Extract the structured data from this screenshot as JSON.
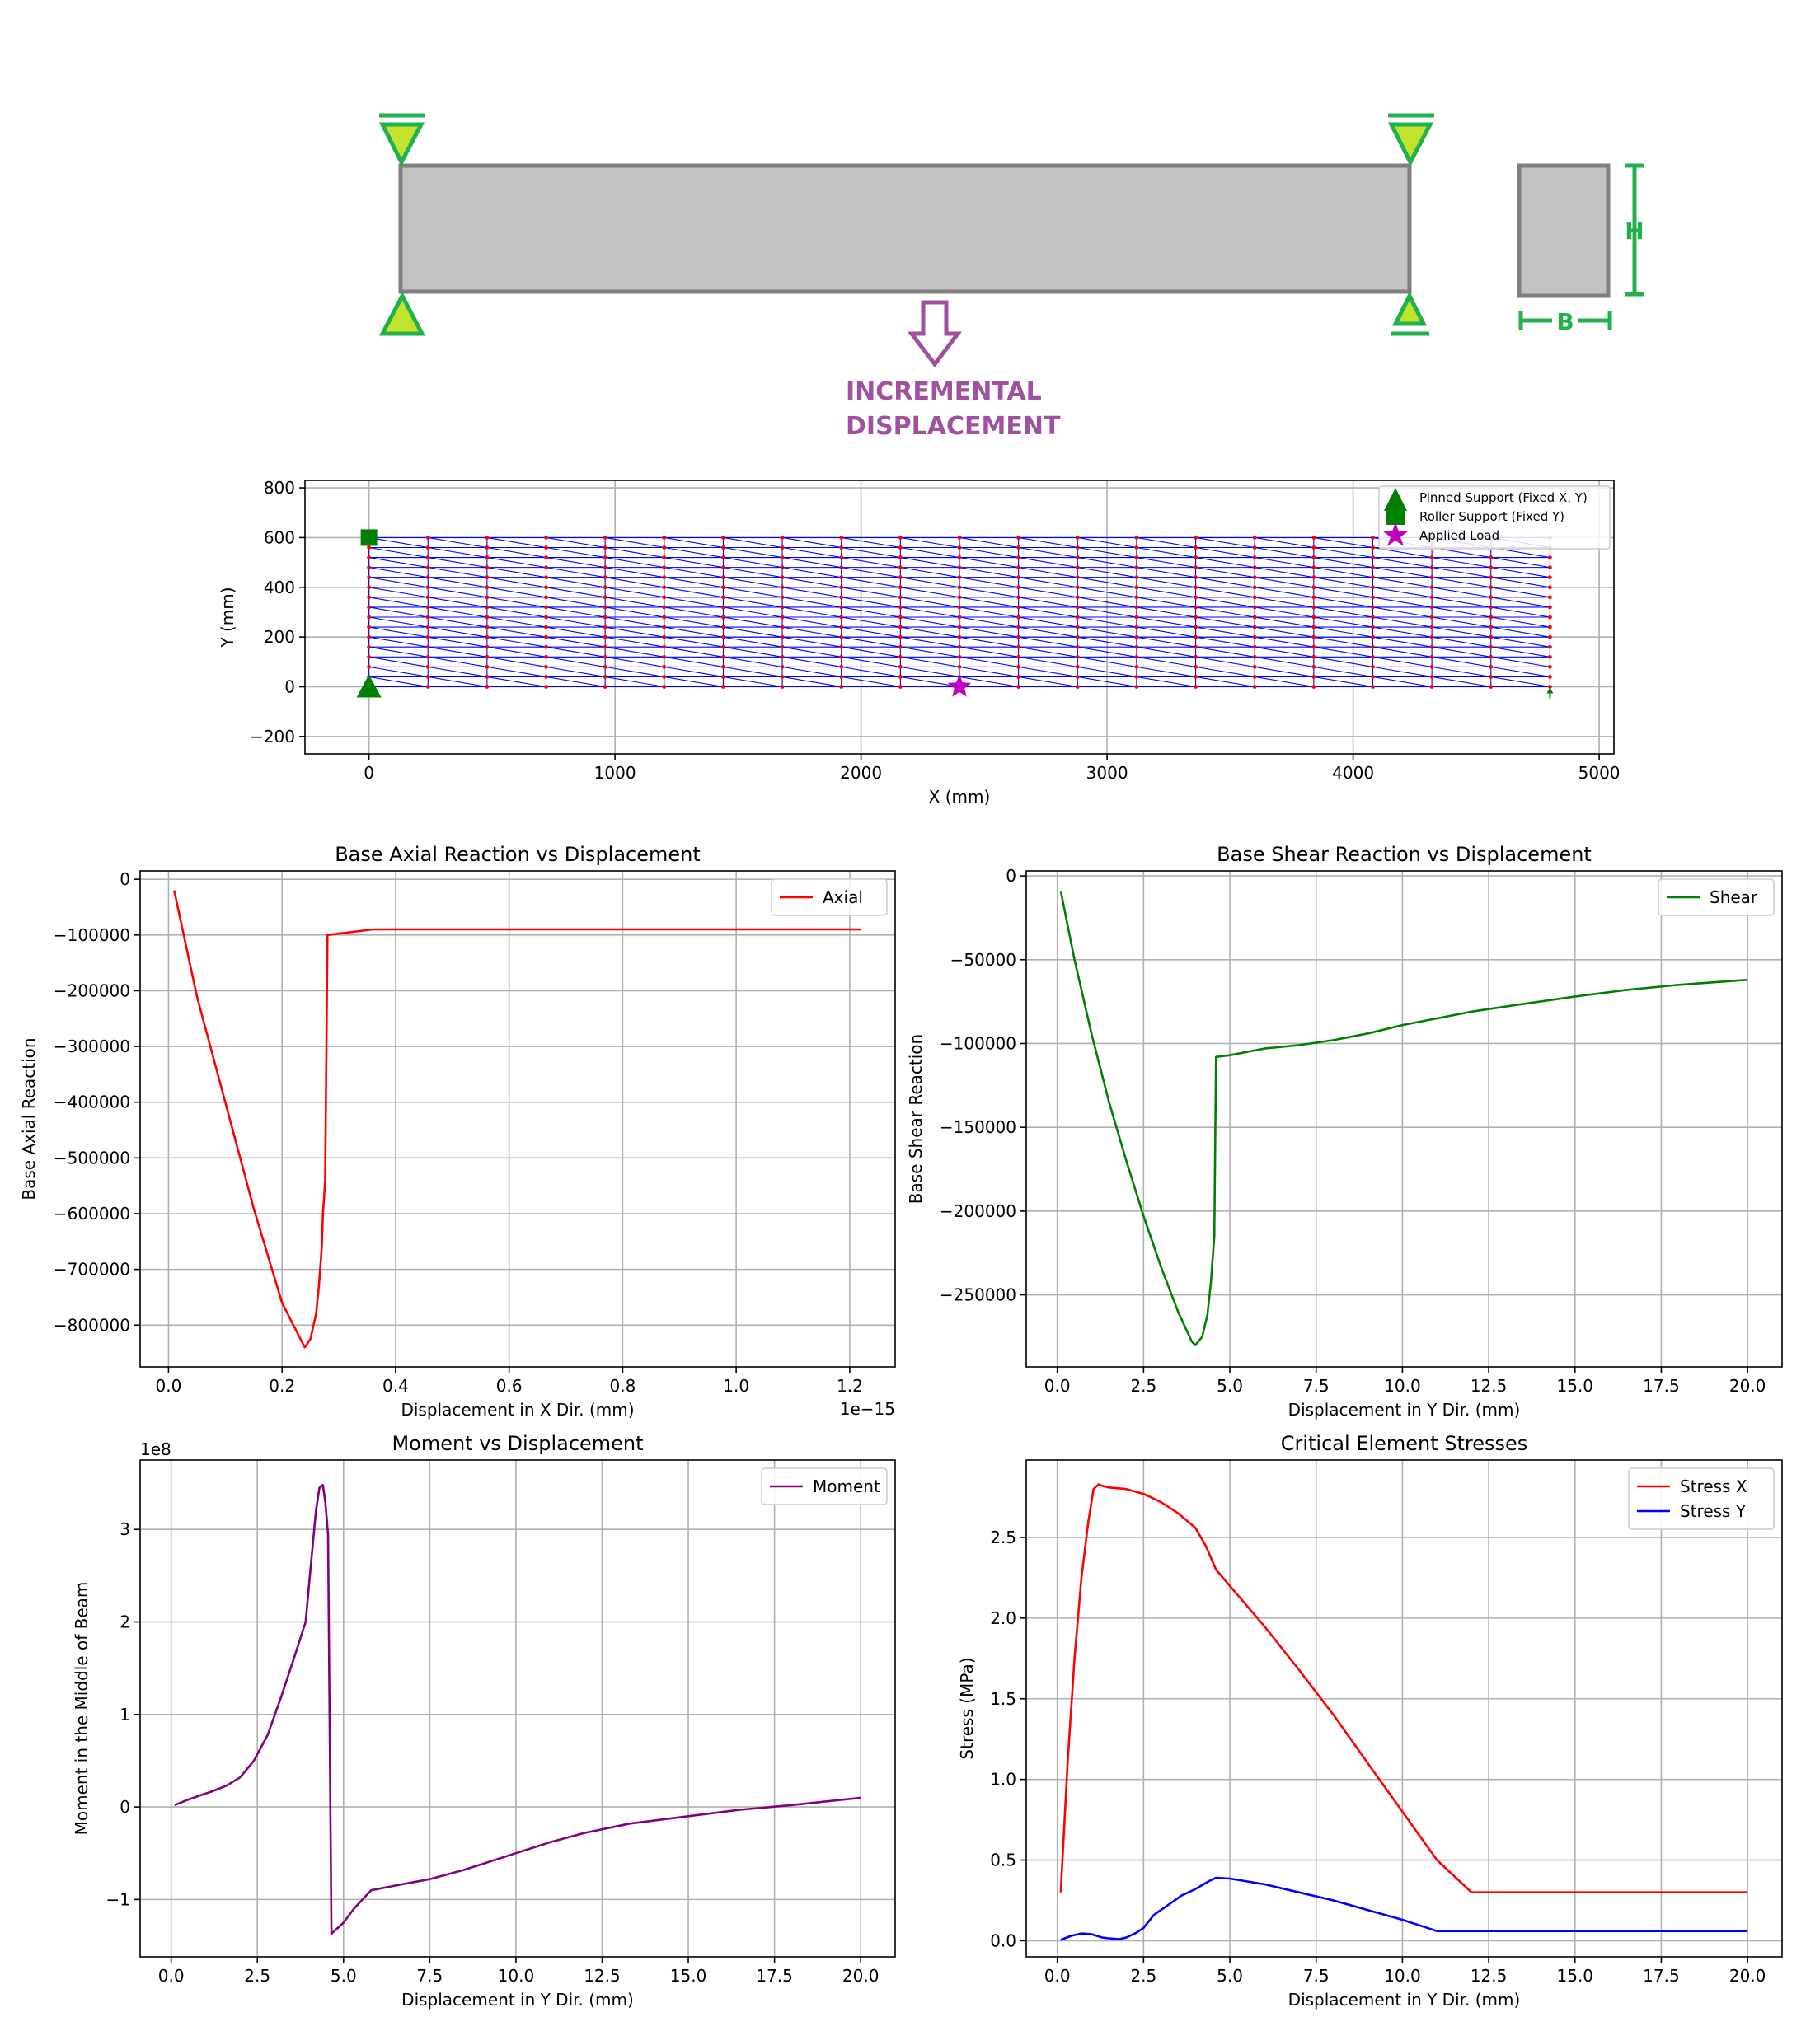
{
  "schematic": {
    "load_label_line1": "INCREMENTAL",
    "load_label_line2": "DISPLACEMENT",
    "height_label": "H",
    "width_label": "B",
    "colors": {
      "beam_fill": "#c2c2c2",
      "beam_edge": "#7f7f7f",
      "support": "#21b04b",
      "support_fill": "#c2e32c",
      "load": "#a0509e"
    }
  },
  "chart_data": [
    {
      "id": "mesh",
      "type": "scatter",
      "title": "",
      "xlabel": "X (mm)",
      "ylabel": "Y (mm)",
      "xlim": [
        -260,
        5060
      ],
      "ylim": [
        -270,
        830
      ],
      "xticks": [
        0,
        1000,
        2000,
        3000,
        4000,
        5000
      ],
      "yticks": [
        -200,
        0,
        200,
        400,
        600,
        800
      ],
      "grid": true,
      "mesh": {
        "x_start": 0,
        "x_end": 4800,
        "x_divisions": 20,
        "y_start": 0,
        "y_end": 600,
        "y_divisions": 15
      },
      "markers": [
        {
          "name": "Pinned Support (Fixed X, Y)",
          "symbol": "triangle",
          "color": "#007f00",
          "x": 0,
          "y": 0
        },
        {
          "name": "Roller Support (Fixed Y)",
          "symbol": "square",
          "color": "#007f00",
          "x": 0,
          "y": 600
        },
        {
          "name": "Applied Load",
          "symbol": "star",
          "color": "#bf00bf",
          "x": 2400,
          "y": 0
        }
      ],
      "legend": {
        "position": "top-right",
        "entries": [
          "Pinned Support (Fixed X, Y)",
          "Roller Support (Fixed Y)",
          "Applied Load"
        ]
      },
      "colors": {
        "element": "#0000ff",
        "node": "#ff0000"
      }
    },
    {
      "id": "axial",
      "type": "line",
      "title": "Base Axial Reaction vs Displacement",
      "xlabel": "Displacement in X Dir. (mm)",
      "ylabel": "Base Axial Reaction",
      "x_offset_text": "1e−15",
      "xlim": [
        -0.05,
        1.28
      ],
      "ylim": [
        -875000,
        15000
      ],
      "xticks": [
        0.0,
        0.2,
        0.4,
        0.6,
        0.8,
        1.0,
        1.2
      ],
      "xtick_labels": [
        "0.0",
        "0.2",
        "0.4",
        "0.6",
        "0.8",
        "1.0",
        "1.2"
      ],
      "yticks": [
        0,
        -100000,
        -200000,
        -300000,
        -400000,
        -500000,
        -600000,
        -700000,
        -800000
      ],
      "ytick_labels": [
        "0",
        "−100000",
        "−200000",
        "−300000",
        "−400000",
        "−500000",
        "−600000",
        "−700000",
        "−800000"
      ],
      "grid": true,
      "legend": {
        "position": "top-right"
      },
      "series": [
        {
          "name": "Axial",
          "color": "#ff0000",
          "x": [
            0.01,
            0.05,
            0.1,
            0.15,
            0.2,
            0.24,
            0.25,
            0.26,
            0.265,
            0.27,
            0.272,
            0.276,
            0.28,
            0.36,
            1.22
          ],
          "y": [
            -20000,
            -210000,
            -400000,
            -590000,
            -760000,
            -840000,
            -825000,
            -780000,
            -730000,
            -660000,
            -600000,
            -540000,
            -100000,
            -90000,
            -90000
          ]
        }
      ]
    },
    {
      "id": "shear",
      "type": "line",
      "title": "Base Shear Reaction vs Displacement",
      "xlabel": "Displacement in Y Dir. (mm)",
      "ylabel": "Base Shear Reaction",
      "xlim": [
        -0.9,
        21.0
      ],
      "ylim": [
        -293000,
        3000
      ],
      "xticks": [
        0,
        2.5,
        5,
        7.5,
        10,
        12.5,
        15,
        17.5,
        20
      ],
      "xtick_labels": [
        "0.0",
        "2.5",
        "5.0",
        "7.5",
        "10.0",
        "12.5",
        "15.0",
        "17.5",
        "20.0"
      ],
      "yticks": [
        0,
        -50000,
        -100000,
        -150000,
        -200000,
        -250000
      ],
      "ytick_labels": [
        "0",
        "−50000",
        "−100000",
        "−150000",
        "−200000",
        "−250000"
      ],
      "grid": true,
      "legend": {
        "position": "top-right"
      },
      "series": [
        {
          "name": "Shear",
          "color": "#007f00",
          "x": [
            0.1,
            0.5,
            1.0,
            1.5,
            2.0,
            2.5,
            3.0,
            3.5,
            3.9,
            4.0,
            4.2,
            4.35,
            4.45,
            4.55,
            4.6,
            5.0,
            6.0,
            7.0,
            8.0,
            9.0,
            10.0,
            11.0,
            12.0,
            13.3,
            15.0,
            16.5,
            18.0,
            20.0
          ],
          "y": [
            -9000,
            -50000,
            -95000,
            -135000,
            -170000,
            -203000,
            -233000,
            -260000,
            -278000,
            -280000,
            -275000,
            -262000,
            -243000,
            -215000,
            -108000,
            -107000,
            -103000,
            -101000,
            -98000,
            -94000,
            -89000,
            -85000,
            -81000,
            -77000,
            -72000,
            -68000,
            -65000,
            -62000
          ]
        }
      ]
    },
    {
      "id": "moment",
      "type": "line",
      "title": "Moment vs Displacement",
      "xlabel": "Displacement in Y Dir. (mm)",
      "ylabel": "Moment in the Middle of Beam",
      "y_offset_text": "1e8",
      "xlim": [
        -0.9,
        21.0
      ],
      "ylim": [
        -1.62,
        3.75
      ],
      "xticks": [
        0,
        2.5,
        5,
        7.5,
        10,
        12.5,
        15,
        17.5,
        20
      ],
      "xtick_labels": [
        "0.0",
        "2.5",
        "5.0",
        "7.5",
        "10.0",
        "12.5",
        "15.0",
        "17.5",
        "20.0"
      ],
      "yticks": [
        -1,
        0,
        1,
        2,
        3
      ],
      "ytick_labels": [
        "−1",
        "0",
        "1",
        "2",
        "3"
      ],
      "grid": true,
      "legend": {
        "position": "top-right"
      },
      "series": [
        {
          "name": "Moment",
          "color": "#800080",
          "x": [
            0.1,
            0.5,
            0.8,
            1.2,
            1.6,
            2.0,
            2.4,
            2.8,
            3.2,
            3.6,
            3.9,
            4.05,
            4.2,
            4.3,
            4.4,
            4.47,
            4.55,
            4.65,
            5.0,
            5.3,
            5.8,
            6.5,
            7.5,
            8.5,
            10.0,
            11.0,
            12.0,
            13.3,
            15.0,
            16.5,
            18.0,
            20.0
          ],
          "y": [
            0.02,
            0.08,
            0.12,
            0.17,
            0.23,
            0.32,
            0.5,
            0.78,
            1.2,
            1.65,
            2.0,
            2.6,
            3.2,
            3.45,
            3.48,
            3.3,
            2.95,
            -1.37,
            -1.25,
            -1.1,
            -0.9,
            -0.85,
            -0.78,
            -0.68,
            -0.5,
            -0.38,
            -0.28,
            -0.18,
            -0.1,
            -0.03,
            0.02,
            0.1
          ]
        }
      ]
    },
    {
      "id": "stress",
      "type": "line",
      "title": "Critical Element Stresses",
      "xlabel": "Displacement in Y Dir. (mm)",
      "ylabel": "Stress (MPa)",
      "xlim": [
        -0.9,
        21.0
      ],
      "ylim": [
        -0.1,
        2.98
      ],
      "xticks": [
        0,
        2.5,
        5,
        7.5,
        10,
        12.5,
        15,
        17.5,
        20
      ],
      "xtick_labels": [
        "0.0",
        "2.5",
        "5.0",
        "7.5",
        "10.0",
        "12.5",
        "15.0",
        "17.5",
        "20.0"
      ],
      "yticks": [
        0.0,
        0.5,
        1.0,
        1.5,
        2.0,
        2.5
      ],
      "ytick_labels": [
        "0.0",
        "0.5",
        "1.0",
        "1.5",
        "2.0",
        "2.5"
      ],
      "grid": true,
      "legend": {
        "position": "top-right"
      },
      "series": [
        {
          "name": "Stress X",
          "color": "#ff0000",
          "x": [
            0.1,
            0.3,
            0.5,
            0.7,
            0.9,
            1.05,
            1.2,
            1.3,
            1.5,
            2.0,
            2.5,
            3.0,
            3.5,
            4.0,
            4.3,
            4.5,
            4.6,
            5.0,
            6.0,
            7.0,
            8.0,
            9.0,
            10.0,
            11.0,
            12.0,
            15.0,
            20.0
          ],
          "y": [
            0.3,
            1.1,
            1.75,
            2.25,
            2.6,
            2.8,
            2.83,
            2.82,
            2.81,
            2.8,
            2.77,
            2.72,
            2.65,
            2.56,
            2.45,
            2.35,
            2.3,
            2.2,
            1.95,
            1.68,
            1.4,
            1.1,
            0.8,
            0.5,
            0.3,
            0.3,
            0.3
          ]
        },
        {
          "name": "Stress Y",
          "color": "#0000ff",
          "x": [
            0.1,
            0.4,
            0.7,
            1.0,
            1.3,
            1.5,
            1.8,
            2.0,
            2.3,
            2.5,
            2.8,
            3.2,
            3.6,
            4.0,
            4.4,
            4.6,
            5.0,
            6.0,
            7.0,
            8.0,
            9.0,
            10.0,
            11.0,
            12.0,
            15.0,
            20.0
          ],
          "y": [
            0.005,
            0.03,
            0.045,
            0.04,
            0.02,
            0.015,
            0.01,
            0.02,
            0.05,
            0.08,
            0.16,
            0.22,
            0.28,
            0.32,
            0.37,
            0.39,
            0.385,
            0.35,
            0.3,
            0.25,
            0.19,
            0.13,
            0.06,
            0.06,
            0.06,
            0.06
          ]
        }
      ]
    }
  ]
}
